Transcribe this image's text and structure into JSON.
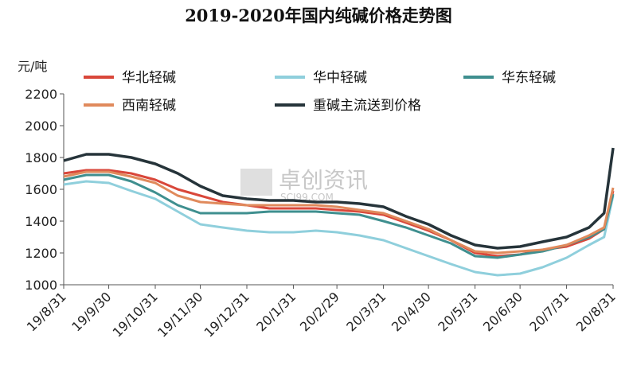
{
  "chart_data": {
    "type": "line",
    "title": "2019-2020年国内纯碱价格走势图",
    "ylabel": "元/吨",
    "ylim": [
      1000,
      2200
    ],
    "yticks": [
      1000,
      1200,
      1400,
      1600,
      1800,
      2000,
      2200
    ],
    "x_tick_labels": [
      "19/8/31",
      "19/9/30",
      "19/10/31",
      "19/11/30",
      "19/12/31",
      "20/1/31",
      "20/2/29",
      "20/3/31",
      "20/4/30",
      "20/5/31",
      "20/6/30",
      "20/7/31",
      "20/8/31"
    ],
    "x": [
      "2019-08-31",
      "2019-09-15",
      "2019-09-30",
      "2019-10-15",
      "2019-10-31",
      "2019-11-15",
      "2019-11-30",
      "2019-12-15",
      "2019-12-31",
      "2020-01-15",
      "2020-01-31",
      "2020-02-15",
      "2020-02-29",
      "2020-03-15",
      "2020-03-31",
      "2020-04-15",
      "2020-04-30",
      "2020-05-15",
      "2020-05-31",
      "2020-06-15",
      "2020-06-30",
      "2020-07-15",
      "2020-07-31",
      "2020-08-15",
      "2020-08-25",
      "2020-08-31"
    ],
    "series": [
      {
        "name": "华北轻碱",
        "color": "#d9473a",
        "values": [
          1700,
          1720,
          1720,
          1700,
          1660,
          1600,
          1560,
          1520,
          1500,
          1480,
          1480,
          1480,
          1470,
          1460,
          1440,
          1390,
          1340,
          1280,
          1200,
          1180,
          1190,
          1220,
          1240,
          1290,
          1350,
          1590
        ]
      },
      {
        "name": "华中轻碱",
        "color": "#8fcfdc",
        "values": [
          1630,
          1650,
          1640,
          1590,
          1540,
          1460,
          1380,
          1360,
          1340,
          1330,
          1330,
          1340,
          1330,
          1310,
          1280,
          1230,
          1180,
          1130,
          1080,
          1060,
          1070,
          1110,
          1170,
          1250,
          1300,
          1560
        ]
      },
      {
        "name": "华东轻碱",
        "color": "#3f8f8f",
        "values": [
          1660,
          1690,
          1690,
          1650,
          1580,
          1500,
          1450,
          1450,
          1450,
          1460,
          1460,
          1460,
          1450,
          1440,
          1400,
          1360,
          1310,
          1260,
          1180,
          1170,
          1190,
          1210,
          1250,
          1300,
          1350,
          1570
        ]
      },
      {
        "name": "西南轻碱",
        "color": "#e08a5c",
        "values": [
          1680,
          1710,
          1710,
          1680,
          1640,
          1560,
          1520,
          1510,
          1500,
          1500,
          1500,
          1500,
          1490,
          1470,
          1450,
          1400,
          1350,
          1280,
          1210,
          1200,
          1210,
          1220,
          1250,
          1310,
          1360,
          1610
        ]
      },
      {
        "name": "重碱主流送到价格",
        "color": "#26343a",
        "values": [
          1780,
          1820,
          1820,
          1800,
          1760,
          1700,
          1620,
          1560,
          1540,
          1530,
          1530,
          1520,
          1520,
          1510,
          1490,
          1430,
          1380,
          1310,
          1250,
          1230,
          1240,
          1270,
          1300,
          1360,
          1450,
          1860
        ]
      }
    ],
    "legend": "top",
    "grid": false
  },
  "watermark": {
    "text": "卓创资讯",
    "sub": "SCI99.COM"
  }
}
